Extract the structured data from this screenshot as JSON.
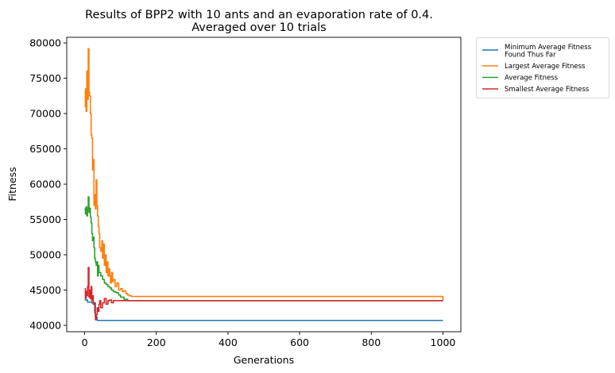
{
  "chart_data": {
    "type": "line",
    "title": "Results of BPP2 with 10 ants and an evaporation rate of 0.4.",
    "subtitle": "Averaged over 10 trials",
    "xlabel": "Generations",
    "ylabel": "Fitness",
    "xlim": [
      -50,
      1050
    ],
    "ylim": [
      39100,
      80800
    ],
    "x_ticks": [
      0,
      200,
      400,
      600,
      800,
      1000
    ],
    "y_ticks": [
      40000,
      45000,
      50000,
      55000,
      60000,
      65000,
      70000,
      75000,
      80000
    ],
    "legend_position": "outside-right",
    "grid": false,
    "series": [
      {
        "name": "Minimum Average Fitness\nFound Thus Far",
        "color": "#1f77b4",
        "x": [
          0,
          5,
          8,
          10,
          15,
          20,
          25,
          30,
          35,
          40,
          1000
        ],
        "y": [
          43600,
          43600,
          43300,
          43300,
          43300,
          43200,
          43200,
          41200,
          40700,
          40700,
          40700
        ]
      },
      {
        "name": "Largest Average Fitness",
        "color": "#ff7f0e",
        "x": [
          0,
          2,
          4,
          6,
          8,
          10,
          12,
          14,
          16,
          18,
          20,
          22,
          24,
          26,
          28,
          30,
          32,
          34,
          36,
          38,
          40,
          42,
          45,
          48,
          50,
          52,
          55,
          58,
          60,
          62,
          65,
          68,
          70,
          72,
          75,
          78,
          80,
          85,
          90,
          95,
          100,
          105,
          110,
          115,
          120,
          125,
          130,
          1000
        ],
        "y": [
          71000,
          73500,
          70300,
          76000,
          72000,
          79200,
          73000,
          72500,
          70000,
          67000,
          66500,
          62000,
          63500,
          57000,
          58500,
          56500,
          60600,
          57000,
          55500,
          54000,
          53000,
          51000,
          50500,
          52000,
          49500,
          51500,
          48500,
          50000,
          47500,
          49000,
          47000,
          48000,
          47000,
          46000,
          47500,
          46200,
          46500,
          45500,
          46000,
          45000,
          45200,
          44800,
          44900,
          44500,
          44300,
          44200,
          44100,
          43500
        ]
      },
      {
        "name": "Average Fitness",
        "color": "#2ca02c",
        "x": [
          0,
          2,
          4,
          6,
          8,
          10,
          12,
          14,
          16,
          18,
          20,
          22,
          24,
          26,
          28,
          30,
          32,
          34,
          36,
          38,
          40,
          45,
          50,
          55,
          60,
          65,
          70,
          75,
          80,
          85,
          90,
          95,
          100,
          110,
          120,
          1000
        ],
        "y": [
          56500,
          55800,
          56800,
          55500,
          56500,
          58200,
          56000,
          56600,
          55300,
          54500,
          53000,
          52000,
          52500,
          51000,
          49500,
          49000,
          48500,
          49000,
          47000,
          48500,
          47500,
          47000,
          46500,
          46000,
          45800,
          45500,
          45300,
          45000,
          44800,
          44700,
          44600,
          44300,
          44000,
          43700,
          43500,
          43500
        ]
      },
      {
        "name": "Smallest Average Fitness",
        "color": "#d62728",
        "x": [
          0,
          2,
          4,
          6,
          8,
          10,
          12,
          14,
          16,
          18,
          20,
          22,
          24,
          26,
          28,
          30,
          32,
          35,
          38,
          40,
          42,
          45,
          50,
          55,
          60,
          65,
          70,
          75,
          80,
          90,
          100,
          1000
        ],
        "y": [
          45200,
          43800,
          44800,
          44200,
          45500,
          48200,
          44000,
          45000,
          43800,
          45500,
          43500,
          44200,
          43000,
          43200,
          41800,
          40800,
          41500,
          42500,
          42000,
          43000,
          43500,
          42500,
          43200,
          43800,
          43000,
          43500,
          43600,
          43200,
          43500,
          43500,
          43500,
          43500
        ]
      }
    ]
  }
}
